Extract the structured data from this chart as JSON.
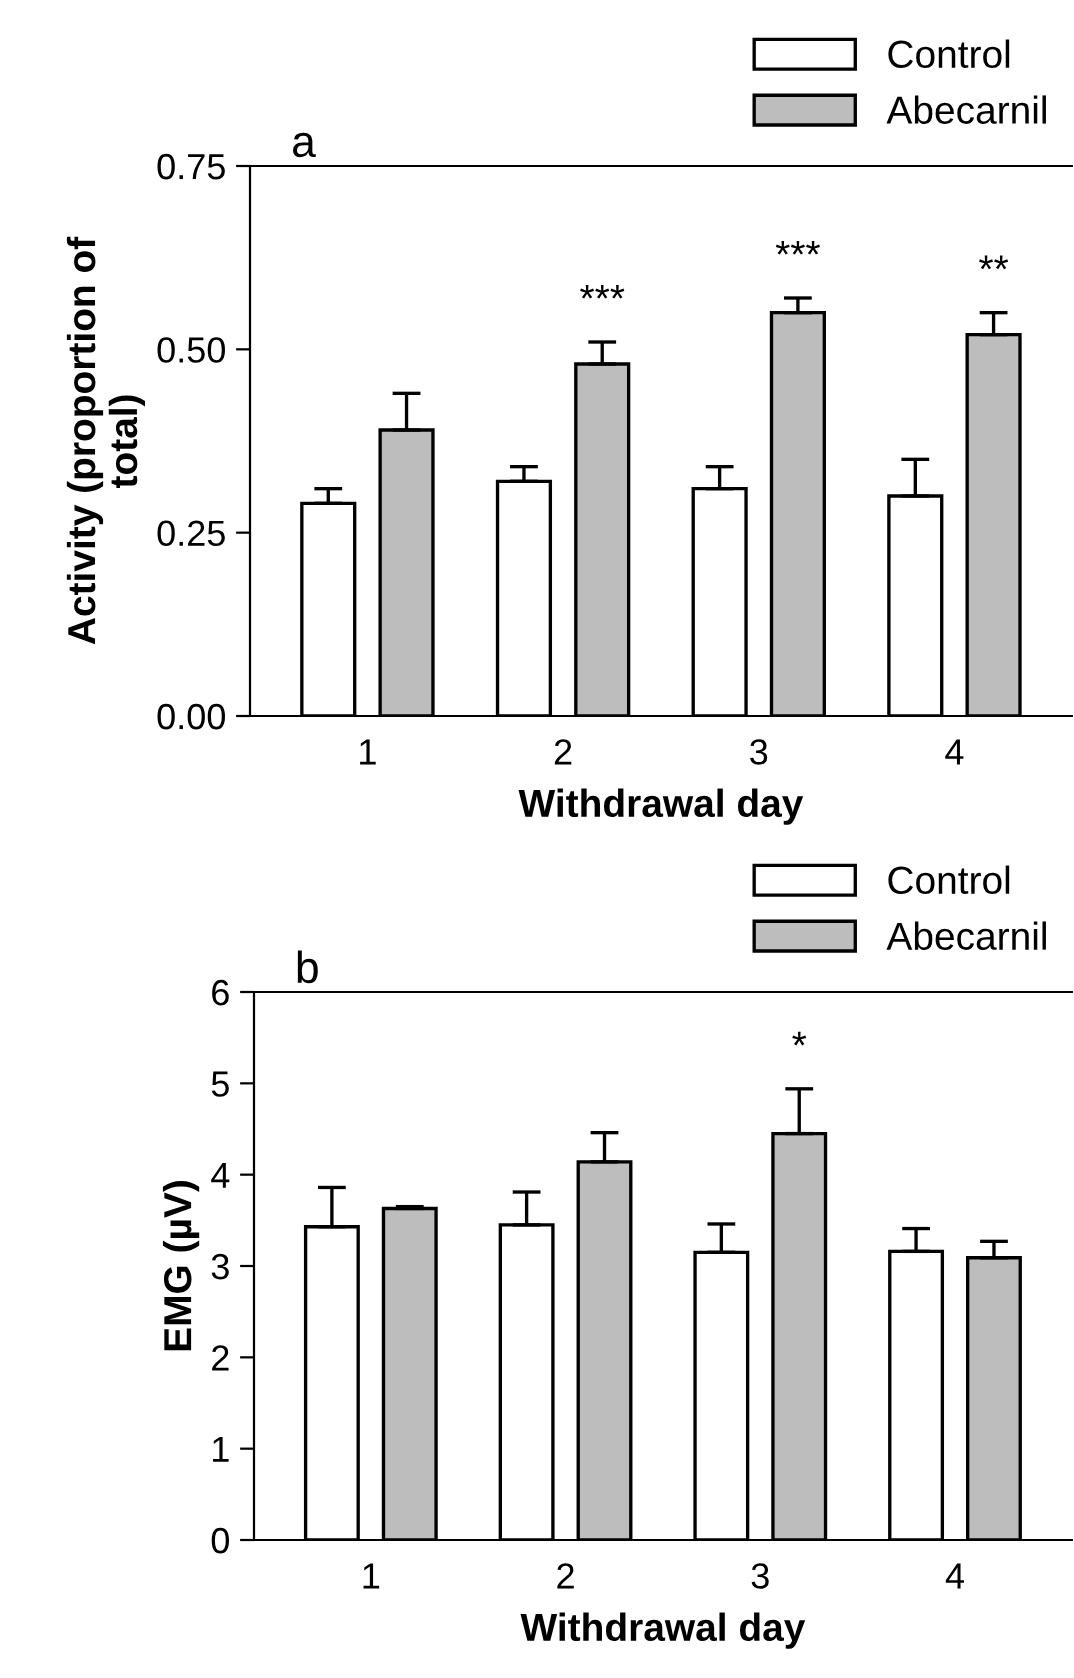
{
  "chart_data": [
    {
      "type": "bar",
      "title": "a",
      "xlabel": "Withdrawal day",
      "ylabel": "Activity (proportion of\ntotal)",
      "categories": [
        "1",
        "2",
        "3",
        "4"
      ],
      "series": [
        {
          "name": "Control",
          "color": "#ffffff",
          "values": [
            0.29,
            0.32,
            0.31,
            0.3
          ],
          "errors": [
            [
              0.29,
              0.31
            ],
            [
              0.32,
              0.34
            ],
            [
              0.31,
              0.34
            ],
            [
              0.3,
              0.35
            ]
          ]
        },
        {
          "name": "Abecarnil",
          "color": "#bdbdbd",
          "values": [
            0.39,
            0.48,
            0.55,
            0.52
          ],
          "errors": [
            [
              0.39,
              0.44
            ],
            [
              0.48,
              0.51
            ],
            [
              0.55,
              0.57
            ],
            [
              0.52,
              0.55
            ]
          ],
          "value_labels": [
            null,
            "***",
            "***",
            "**"
          ]
        }
      ],
      "ylim": [
        0,
        0.75
      ],
      "yticks": [
        {
          "value": 0,
          "label": "0.00"
        },
        {
          "value": 0.25,
          "label": "0.25"
        },
        {
          "value": 0.5,
          "label": "0.50"
        },
        {
          "value": 0.75,
          "label": "0.75"
        }
      ],
      "legend": "top right",
      "grid": false
    },
    {
      "type": "bar",
      "title": "b",
      "xlabel": "Withdrawal day",
      "ylabel": "EMG (µV)",
      "categories": [
        "1",
        "2",
        "3",
        "4"
      ],
      "series": [
        {
          "name": "Control",
          "color": "#ffffff",
          "values": [
            3.43,
            3.45,
            3.15,
            3.16
          ],
          "errors": [
            [
              3.43,
              3.86
            ],
            [
              3.45,
              3.81
            ],
            [
              3.15,
              3.46
            ],
            [
              3.16,
              3.41
            ]
          ]
        },
        {
          "name": "Abecarnil",
          "color": "#bdbdbd",
          "values": [
            3.63,
            4.14,
            4.45,
            3.09
          ],
          "errors": [
            [
              3.63,
              3.65
            ],
            [
              4.14,
              4.46
            ],
            [
              4.45,
              4.94
            ],
            [
              3.09,
              3.27
            ]
          ],
          "value_labels": [
            null,
            null,
            "*",
            null
          ]
        }
      ],
      "ylim": [
        0,
        6
      ],
      "yticks": [
        0,
        1,
        2,
        3,
        4,
        5,
        6
      ],
      "legend": "top right",
      "grid": false
    }
  ]
}
